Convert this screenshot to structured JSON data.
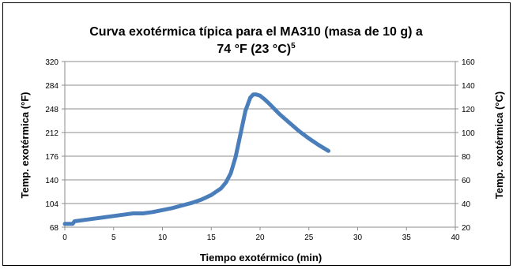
{
  "chart_data": {
    "type": "line",
    "title": "Curva exotérmica típica para el MA310 (masa de 10 g) a",
    "title_line2_main": "74 °F (23 °C)",
    "title_line2_sup": "5",
    "xlabel": "Tiempo exotérmico (min)",
    "ylabel_left": "Temp. exotérmica (°F)",
    "ylabel_right": "Temp. exotérmica (°C)",
    "xlim": [
      0,
      40
    ],
    "ylim_left": [
      68,
      320
    ],
    "ylim_right": [
      20,
      160
    ],
    "x_ticks": [
      "0",
      "5",
      "10",
      "15",
      "20",
      "25",
      "30",
      "35",
      "40"
    ],
    "y_left_ticks": [
      "68",
      "104",
      "140",
      "176",
      "212",
      "248",
      "284",
      "320"
    ],
    "y_right_ticks": [
      "20",
      "40",
      "60",
      "80",
      "100",
      "120",
      "140",
      "160"
    ],
    "grid": "horizontal",
    "line_color": "#4a7ebb",
    "series": [
      {
        "x": [
          0,
          0.8,
          1,
          2,
          3,
          4,
          5,
          6,
          7,
          8,
          9,
          10,
          11,
          12,
          13,
          14,
          15,
          16,
          16.5,
          17,
          17.5,
          18,
          18.5,
          19,
          19.3,
          19.6,
          20,
          20.5,
          21,
          22,
          23,
          24,
          25,
          26,
          27
        ],
        "y": [
          73,
          73,
          77,
          79,
          81,
          83,
          85,
          87,
          89,
          89,
          91,
          94,
          97,
          101,
          105,
          110,
          117,
          127,
          136,
          150,
          175,
          210,
          245,
          265,
          270,
          270,
          268,
          262,
          255,
          240,
          227,
          214,
          203,
          193,
          184
        ]
      }
    ]
  }
}
